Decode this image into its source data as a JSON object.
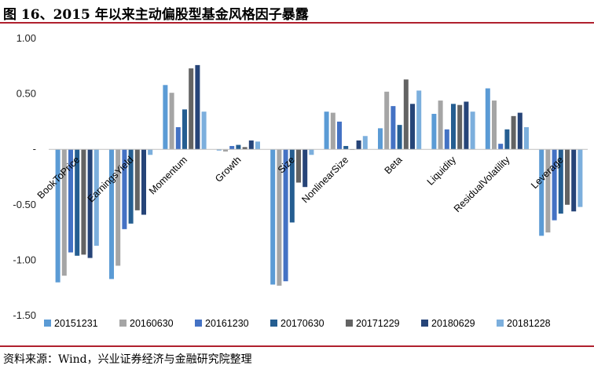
{
  "title": "图 16、2015 年以来主动偏股型基金风格因子暴露",
  "source": "资料来源：Wind，兴业证券经济与金融研究院整理",
  "chart_data": {
    "type": "bar",
    "categories": [
      "BookToPrice",
      "EarningsYield",
      "Momentum",
      "Growth",
      "Size",
      "NonlinearSize",
      "Beta",
      "Liquidity",
      "ResidualVolatility",
      "Leverage"
    ],
    "ylim": [
      -1.5,
      1.0
    ],
    "ytick_values": [
      1.0,
      0.5,
      0,
      -0.5,
      -1.0,
      -1.5
    ],
    "ytick_labels": [
      "1.00",
      "0.50",
      "-",
      "-0.50",
      "-1.00",
      "-1.50"
    ],
    "series": [
      {
        "name": "20151231",
        "color": "#5b9bd5",
        "values": [
          -1.2,
          -1.17,
          0.58,
          -0.01,
          -1.22,
          0.34,
          0.19,
          0.32,
          0.55,
          -0.78
        ]
      },
      {
        "name": "20160630",
        "color": "#a5a5a5",
        "values": [
          -1.14,
          -1.05,
          0.51,
          -0.02,
          -1.23,
          0.33,
          0.52,
          0.44,
          0.44,
          -0.75
        ]
      },
      {
        "name": "20161230",
        "color": "#4472c4",
        "values": [
          -0.93,
          -0.72,
          0.2,
          0.03,
          -1.19,
          0.25,
          0.39,
          0.18,
          0.05,
          -0.64
        ]
      },
      {
        "name": "20170630",
        "color": "#255e91",
        "values": [
          -0.96,
          -0.67,
          0.36,
          0.04,
          -0.66,
          0.03,
          0.22,
          0.41,
          0.18,
          -0.58
        ]
      },
      {
        "name": "20171229",
        "color": "#636363",
        "values": [
          -0.95,
          -0.55,
          0.73,
          0.02,
          -0.3,
          0.0,
          0.63,
          0.4,
          0.3,
          -0.5
        ]
      },
      {
        "name": "20180629",
        "color": "#264478",
        "values": [
          -0.98,
          -0.59,
          0.76,
          0.08,
          -0.34,
          0.08,
          0.41,
          0.43,
          0.33,
          -0.56
        ]
      },
      {
        "name": "20181228",
        "color": "#7cafdd",
        "values": [
          -0.87,
          -0.05,
          0.34,
          0.07,
          -0.05,
          0.12,
          0.53,
          0.34,
          0.2,
          -0.52
        ]
      }
    ]
  }
}
